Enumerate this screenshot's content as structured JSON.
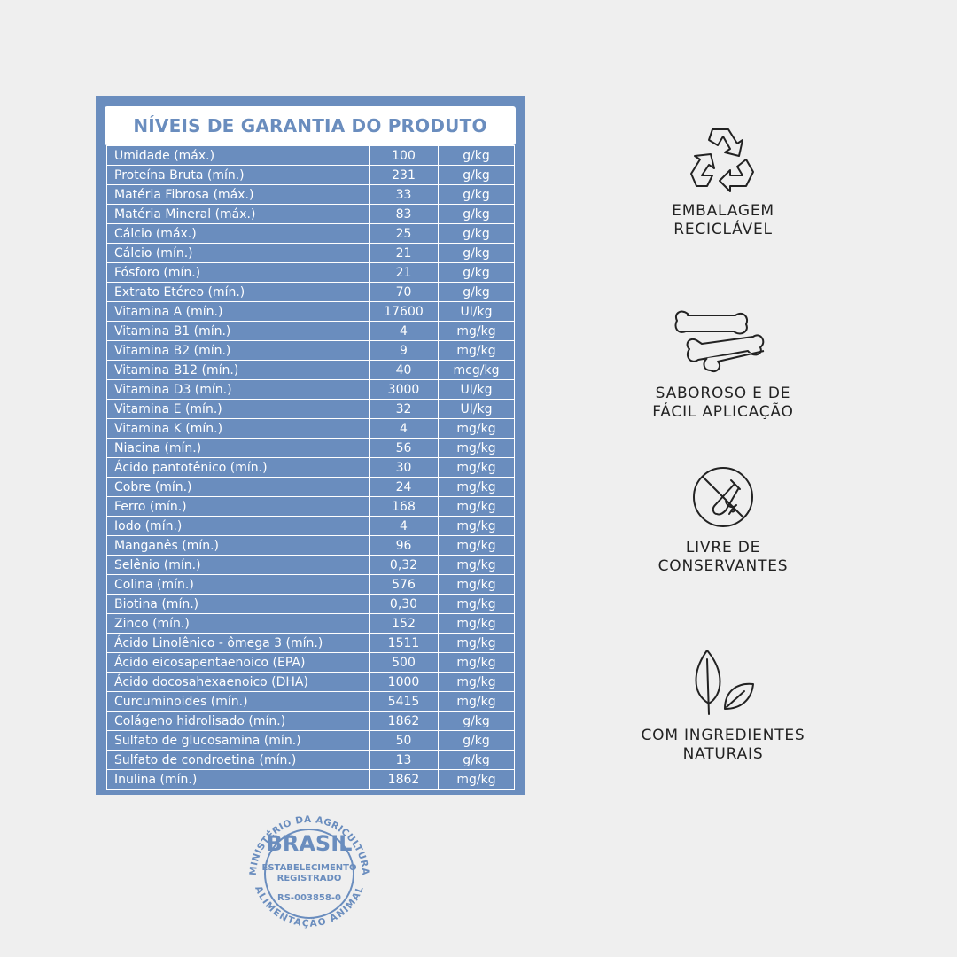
{
  "table": {
    "title": "NÍVEIS DE GARANTIA DO PRODUTO",
    "rows": [
      {
        "name": "Umidade (máx.)",
        "value": "100",
        "unit": "g/kg"
      },
      {
        "name": "Proteína Bruta (mín.)",
        "value": "231",
        "unit": "g/kg"
      },
      {
        "name": "Matéria Fibrosa (máx.)",
        "value": "33",
        "unit": "g/kg"
      },
      {
        "name": "Matéria Mineral (máx.)",
        "value": "83",
        "unit": "g/kg"
      },
      {
        "name": "Cálcio (máx.)",
        "value": "25",
        "unit": "g/kg"
      },
      {
        "name": "Cálcio (mín.)",
        "value": "21",
        "unit": "g/kg"
      },
      {
        "name": "Fósforo (mín.)",
        "value": "21",
        "unit": "g/kg"
      },
      {
        "name": "Extrato Etéreo (mín.)",
        "value": "70",
        "unit": "g/kg"
      },
      {
        "name": "Vitamina A (mín.)",
        "value": "17600",
        "unit": "UI/kg"
      },
      {
        "name": "Vitamina B1 (mín.)",
        "value": "4",
        "unit": "mg/kg"
      },
      {
        "name": "Vitamina B2 (mín.)",
        "value": "9",
        "unit": "mg/kg"
      },
      {
        "name": "Vitamina B12 (mín.)",
        "value": "40",
        "unit": "mcg/kg"
      },
      {
        "name": "Vitamina D3 (mín.)",
        "value": "3000",
        "unit": "UI/kg"
      },
      {
        "name": "Vitamina E (mín.)",
        "value": "32",
        "unit": "UI/kg"
      },
      {
        "name": "Vitamina K (mín.)",
        "value": "4",
        "unit": "mg/kg"
      },
      {
        "name": "Niacina (mín.)",
        "value": "56",
        "unit": "mg/kg"
      },
      {
        "name": "Ácido pantotênico (mín.)",
        "value": "30",
        "unit": "mg/kg"
      },
      {
        "name": "Cobre (mín.)",
        "value": "24",
        "unit": "mg/kg"
      },
      {
        "name": "Ferro (mín.)",
        "value": "168",
        "unit": "mg/kg"
      },
      {
        "name": "Iodo (mín.)",
        "value": "4",
        "unit": "mg/kg"
      },
      {
        "name": "Manganês (mín.)",
        "value": "96",
        "unit": "mg/kg"
      },
      {
        "name": "Selênio (mín.)",
        "value": "0,32",
        "unit": "mg/kg"
      },
      {
        "name": "Colina (mín.)",
        "value": "576",
        "unit": "mg/kg"
      },
      {
        "name": "Biotina (mín.)",
        "value": "0,30",
        "unit": "mg/kg"
      },
      {
        "name": "Zinco (mín.)",
        "value": "152",
        "unit": "mg/kg"
      },
      {
        "name": "Ácido Linolênico - ômega 3 (mín.)",
        "value": "1511",
        "unit": "mg/kg"
      },
      {
        "name": "Ácido eicosapentaenoico (EPA)",
        "value": "500",
        "unit": "mg/kg"
      },
      {
        "name": "Ácido docosahexaenoico (DHA)",
        "value": "1000",
        "unit": "mg/kg"
      },
      {
        "name": "Curcuminoides (mín.)",
        "value": "5415",
        "unit": "mg/kg"
      },
      {
        "name": "Colágeno hidrolisado (mín.)",
        "value": "1862",
        "unit": "g/kg"
      },
      {
        "name": "Sulfato de glucosamina (mín.)",
        "value": "50",
        "unit": "g/kg"
      },
      {
        "name": "Sulfato de condroetina (mín.)",
        "value": "13",
        "unit": "g/kg"
      },
      {
        "name": "Inulina (mín.)",
        "value": "1862",
        "unit": "mg/kg"
      }
    ]
  },
  "features": [
    {
      "icon": "recycle-icon",
      "line1": "EMBALAGEM",
      "line2": "RECICLÁVEL"
    },
    {
      "icon": "dog-bones-icon",
      "line1": "SABOROSO E DE",
      "line2": "FÁCIL APLICAÇÃO"
    },
    {
      "icon": "no-preservatives-icon",
      "line1": "LIVRE DE",
      "line2": "CONSERVANTES"
    },
    {
      "icon": "leaves-icon",
      "line1": "COM INGREDIENTES",
      "line2": "NATURAIS"
    }
  ],
  "seal": {
    "top_arc": "MINISTÉRIO DA AGRICULTURA",
    "country": "BRASIL",
    "line1": "ESTABELECIMENTO",
    "line2": "REGISTRADO",
    "registration": "RS-003858-0",
    "bottom_arc": "ALIMENTAÇÃO ANIMAL",
    "color": "#6a8dbe"
  },
  "colors": {
    "panel": "#6a8dbe",
    "background": "#efefef",
    "text_dark": "#222222"
  }
}
